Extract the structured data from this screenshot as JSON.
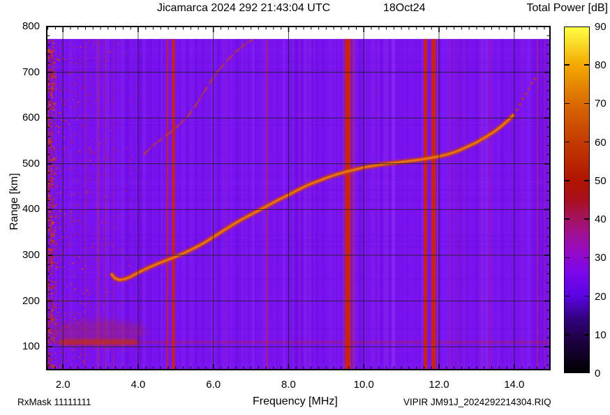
{
  "header": {
    "title": "Jicamarca 2024 292 21:43:04 UTC",
    "date_label": "18Oct24",
    "colorbar_title": "Total Power [dB]"
  },
  "footer": {
    "rx_mask": "RxMask 11111111",
    "file_id": "VIPIR  JM91J_2024292214304.RIQ"
  },
  "chart_data": {
    "type": "heatmap",
    "title": "Jicamarca 2024 292 21:43:04 UTC",
    "date_label": "18Oct24",
    "xlabel": "Frequency [MHz]",
    "ylabel": "Range [km]",
    "colorbar": {
      "title": "Total Power [dB]",
      "min": 0,
      "max": 90,
      "tick_values": [
        0,
        10,
        20,
        30,
        40,
        50,
        60,
        70,
        80,
        90
      ],
      "tick_labels": [
        "0",
        "10",
        "20",
        "30",
        "40",
        "50",
        "60",
        "70",
        "80",
        "90"
      ],
      "gradient_stops": [
        {
          "v": 0,
          "c": "#000000"
        },
        {
          "v": 8,
          "c": "#1c0140"
        },
        {
          "v": 14,
          "c": "#32027e"
        },
        {
          "v": 20,
          "c": "#5b04e4"
        },
        {
          "v": 26,
          "c": "#7a07ea"
        },
        {
          "v": 31,
          "c": "#9309c9"
        },
        {
          "v": 36,
          "c": "#a01195"
        },
        {
          "v": 41,
          "c": "#a51354"
        },
        {
          "v": 45,
          "c": "#a80f1d"
        },
        {
          "v": 50,
          "c": "#b01500"
        },
        {
          "v": 60,
          "c": "#c33a00"
        },
        {
          "v": 70,
          "c": "#d96900"
        },
        {
          "v": 80,
          "c": "#f2a800"
        },
        {
          "v": 90,
          "c": "#ffff45"
        }
      ]
    },
    "x_axis": {
      "min": 1.57,
      "max": 14.95,
      "major_ticks": [
        2,
        4,
        6,
        8,
        10,
        12,
        14
      ],
      "tick_labels": [
        "2.0",
        "4.0",
        "6.0",
        "8.0",
        "10.0",
        "12.0",
        "14.0"
      ],
      "minor_step": 0.2
    },
    "y_axis": {
      "min": 50,
      "max": 800,
      "major_ticks": [
        100,
        200,
        300,
        400,
        500,
        600,
        700,
        800
      ],
      "tick_labels": [
        "100",
        "200",
        "300",
        "400",
        "500",
        "600",
        "700",
        "800"
      ],
      "minor_step": 20
    },
    "grid": {
      "x_values": [
        2,
        4,
        6,
        8,
        10,
        12,
        14
      ],
      "y_values": [
        100,
        200,
        300,
        400,
        500,
        600,
        700
      ],
      "color": "#1c1c1c",
      "opacity": 0.8
    },
    "background_value_db": 23,
    "background_color": "#7912ef",
    "data_top_km": 773,
    "echo_trace_km": [
      [
        3.28,
        260
      ],
      [
        3.38,
        250
      ],
      [
        3.5,
        246
      ],
      [
        3.65,
        248
      ],
      [
        3.8,
        253
      ],
      [
        4.0,
        262
      ],
      [
        4.25,
        272
      ],
      [
        4.5,
        281
      ],
      [
        4.75,
        289
      ],
      [
        5.0,
        297
      ],
      [
        5.25,
        306
      ],
      [
        5.5,
        316
      ],
      [
        5.75,
        327
      ],
      [
        6.0,
        340
      ],
      [
        6.25,
        353
      ],
      [
        6.5,
        366
      ],
      [
        6.75,
        378
      ],
      [
        7.0,
        389
      ],
      [
        7.25,
        400
      ],
      [
        7.5,
        411
      ],
      [
        7.75,
        422
      ],
      [
        8.0,
        432
      ],
      [
        8.25,
        443
      ],
      [
        8.5,
        453
      ],
      [
        8.75,
        461
      ],
      [
        9.0,
        469
      ],
      [
        9.25,
        476
      ],
      [
        9.5,
        482
      ],
      [
        9.75,
        487
      ],
      [
        10.0,
        492
      ],
      [
        10.5,
        499
      ],
      [
        11.0,
        504
      ],
      [
        11.5,
        509
      ],
      [
        12.0,
        516
      ],
      [
        12.25,
        521
      ],
      [
        12.5,
        528
      ],
      [
        12.75,
        537
      ],
      [
        13.0,
        547
      ],
      [
        13.25,
        559
      ],
      [
        13.5,
        572
      ],
      [
        13.7,
        585
      ],
      [
        13.85,
        596
      ],
      [
        14.0,
        608
      ]
    ],
    "second_hop_trace_km": [
      [
        4.15,
        520
      ],
      [
        4.4,
        540
      ],
      [
        4.65,
        556
      ],
      [
        4.9,
        572
      ],
      [
        5.1,
        586
      ],
      [
        5.3,
        602
      ],
      [
        5.5,
        624
      ],
      [
        5.7,
        650
      ],
      [
        5.9,
        676
      ],
      [
        6.1,
        700
      ],
      [
        6.35,
        724
      ],
      [
        6.6,
        745
      ],
      [
        6.85,
        762
      ],
      [
        7.05,
        772
      ]
    ],
    "dotted_tail_km": [
      [
        14.07,
        618
      ],
      [
        14.15,
        630
      ],
      [
        14.23,
        642
      ],
      [
        14.31,
        653
      ],
      [
        14.39,
        664
      ],
      [
        14.47,
        676
      ],
      [
        14.54,
        686
      ]
    ],
    "rfi_lines": [
      {
        "f": 4.78,
        "w": 2.5,
        "c": "#cf2505",
        "o": 0.75
      },
      {
        "f": 4.94,
        "w": 4,
        "c": "#cf2505",
        "o": 0.95
      },
      {
        "f": 9.47,
        "w": 2,
        "c": "#c03050",
        "o": 0.45
      },
      {
        "f": 9.58,
        "w": 8,
        "c": "#cf2505",
        "o": 0.95
      },
      {
        "f": 9.73,
        "w": 3,
        "c": "#c03050",
        "o": 0.5
      },
      {
        "f": 11.64,
        "w": 5,
        "c": "#cf2505",
        "o": 0.95
      },
      {
        "f": 11.85,
        "w": 6,
        "c": "#cf2505",
        "o": 0.95
      },
      {
        "f": 11.96,
        "w": 2,
        "c": "#c03050",
        "o": 0.5
      },
      {
        "f": 7.43,
        "w": 3,
        "c": "#b42868",
        "o": 0.6
      },
      {
        "f": 2.6,
        "w": 2,
        "c": "#b42868",
        "o": 0.4
      },
      {
        "f": 2.94,
        "w": 2.5,
        "c": "#b42868",
        "o": 0.5
      },
      {
        "f": 3.13,
        "w": 2,
        "c": "#b42868",
        "o": 0.45
      },
      {
        "f": 3.35,
        "w": 2,
        "c": "#b42868",
        "o": 0.3
      },
      {
        "f": 6.35,
        "w": 2,
        "c": "#a52ba0",
        "o": 0.35
      },
      {
        "f": 8.3,
        "w": 2,
        "c": "#a52ba0",
        "o": 0.3
      },
      {
        "f": 8.55,
        "w": 2,
        "c": "#a52ba0",
        "o": 0.25
      },
      {
        "f": 10.3,
        "w": 2,
        "c": "#a52ba0",
        "o": 0.3
      },
      {
        "f": 10.6,
        "w": 2,
        "c": "#a52ba0",
        "o": 0.25
      },
      {
        "f": 12.3,
        "w": 2,
        "c": "#b42868",
        "o": 0.4
      },
      {
        "f": 12.5,
        "w": 2,
        "c": "#b42868",
        "o": 0.35
      },
      {
        "f": 12.67,
        "w": 2,
        "c": "#a52ba0",
        "o": 0.3
      },
      {
        "f": 13.1,
        "w": 2,
        "c": "#a52ba0",
        "o": 0.3
      },
      {
        "f": 13.35,
        "w": 3,
        "c": "#b42868",
        "o": 0.35
      },
      {
        "f": 14.2,
        "w": 2,
        "c": "#a52ba0",
        "o": 0.3
      },
      {
        "f": 14.62,
        "w": 3,
        "c": "#b42868",
        "o": 0.45
      },
      {
        "f": 14.8,
        "w": 2.5,
        "c": "#b42868",
        "o": 0.35
      }
    ],
    "e_region_band": {
      "range_km": 110,
      "strong_f_range": [
        1.9,
        4.0
      ],
      "full_width_line": true
    },
    "noise_region": {
      "f_range": [
        1.57,
        4.2
      ],
      "edge_column_f_max": 1.75
    }
  }
}
